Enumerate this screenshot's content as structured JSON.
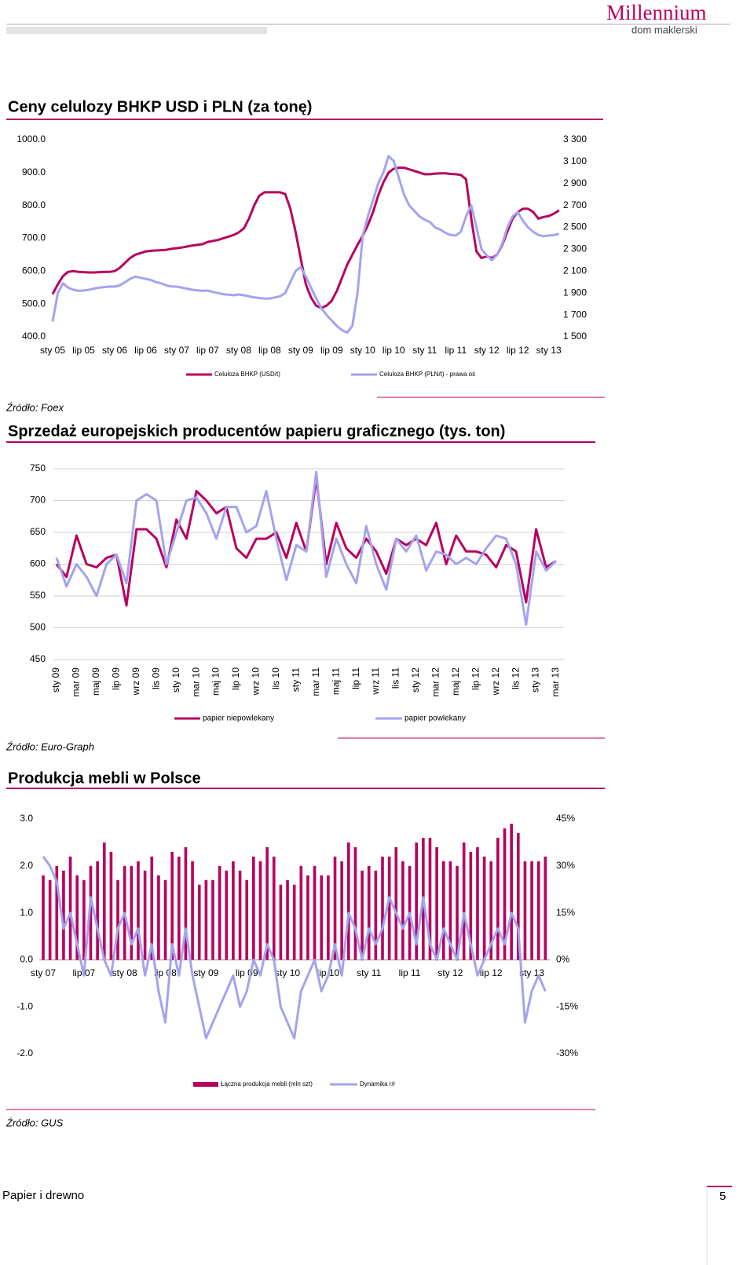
{
  "header": {
    "logo": "Millennium",
    "logo_sub": "dom maklerski"
  },
  "chart_data": [
    {
      "type": "line",
      "title": "Ceny celulozy BHKP USD i PLN (za tonę)",
      "source": "Źródło: Foex",
      "categories": [
        "sty 05",
        null,
        null,
        null,
        null,
        null,
        "lip 05",
        null,
        null,
        null,
        null,
        null,
        "sty 06",
        null,
        null,
        null,
        null,
        null,
        "lip 06",
        null,
        null,
        null,
        null,
        null,
        "sty 07",
        null,
        null,
        null,
        null,
        null,
        "lip 07",
        null,
        null,
        null,
        null,
        null,
        "sty 08",
        null,
        null,
        null,
        null,
        null,
        "lip 08",
        null,
        null,
        null,
        null,
        null,
        "sty 09",
        null,
        null,
        null,
        null,
        null,
        "lip 09",
        null,
        null,
        null,
        null,
        null,
        "sty 10",
        null,
        null,
        null,
        null,
        null,
        "lip 10",
        null,
        null,
        null,
        null,
        null,
        "sty 11",
        null,
        null,
        null,
        null,
        null,
        "lip 11",
        null,
        null,
        null,
        null,
        null,
        "sty 12",
        null,
        null,
        null,
        null,
        null,
        "lip 12",
        null,
        null,
        null,
        null,
        null,
        "sty 13",
        null,
        null
      ],
      "series": [
        {
          "name": "Celuloza BHKP (USD/t)",
          "color": "#b8005f",
          "values": [
            530,
            560,
            585,
            598,
            600,
            598,
            597,
            596,
            596,
            597,
            598,
            598,
            600,
            610,
            625,
            640,
            650,
            655,
            660,
            662,
            663,
            664,
            665,
            668,
            670,
            672,
            675,
            678,
            680,
            682,
            689,
            692,
            695,
            700,
            705,
            710,
            718,
            730,
            760,
            800,
            830,
            840,
            840,
            840,
            840,
            835,
            790,
            720,
            640,
            560,
            520,
            495,
            488,
            495,
            510,
            540,
            580,
            620,
            650,
            680,
            708,
            740,
            780,
            830,
            870,
            900,
            912,
            915,
            915,
            910,
            905,
            900,
            895,
            895,
            897,
            898,
            898,
            896,
            895,
            893,
            880,
            760,
            660,
            640,
            645,
            640,
            650,
            680,
            720,
            760,
            780,
            790,
            790,
            780,
            760,
            765,
            768,
            775,
            785
          ]
        },
        {
          "name": "Celuloza BHKP (PLN/t) - prawa oś",
          "color": "#a3a3f0",
          "axis": "y2",
          "values": [
            1640,
            1900,
            1990,
            1950,
            1930,
            1920,
            1923,
            1930,
            1940,
            1950,
            1955,
            1960,
            1959,
            1970,
            2000,
            2030,
            2050,
            2040,
            2030,
            2020,
            2000,
            1990,
            1970,
            1960,
            1959,
            1950,
            1940,
            1930,
            1925,
            1920,
            1923,
            1910,
            1900,
            1890,
            1885,
            1880,
            1887,
            1880,
            1870,
            1860,
            1855,
            1850,
            1850,
            1860,
            1870,
            1900,
            2000,
            2100,
            2138,
            2050,
            1950,
            1850,
            1760,
            1700,
            1650,
            1600,
            1560,
            1540,
            1600,
            1900,
            2425,
            2600,
            2750,
            2900,
            3000,
            3150,
            3106,
            2950,
            2800,
            2700,
            2650,
            2600,
            2569,
            2550,
            2500,
            2480,
            2450,
            2430,
            2425,
            2460,
            2600,
            2700,
            2500,
            2300,
            2246,
            2200,
            2250,
            2350,
            2500,
            2600,
            2640,
            2560,
            2500,
            2460,
            2430,
            2420,
            2425,
            2430,
            2440
          ]
        }
      ],
      "ylim": [
        400,
        1000
      ],
      "yticks": [
        {
          "value": 1000,
          "label": "1000.0"
        },
        {
          "value": 900,
          "label": "900.0"
        },
        {
          "value": 800,
          "label": "800.0"
        },
        {
          "value": 700,
          "label": "700.0"
        },
        {
          "value": 600,
          "label": "600.0"
        },
        {
          "value": 500,
          "label": "500.0"
        },
        {
          "value": 400,
          "label": "400.0"
        }
      ],
      "y2lim": [
        1500,
        3300
      ],
      "y2ticks": [
        {
          "value": 3300,
          "label": "3 300"
        },
        {
          "value": 3100,
          "label": "3 100"
        },
        {
          "value": 2900,
          "label": "2 900"
        },
        {
          "value": 2700,
          "label": "2 700"
        },
        {
          "value": 2500,
          "label": "2 500"
        },
        {
          "value": 2300,
          "label": "2 300"
        },
        {
          "value": 2100,
          "label": "2 100"
        },
        {
          "value": 1900,
          "label": "1 900"
        },
        {
          "value": 1700,
          "label": "1 700"
        },
        {
          "value": 1500,
          "label": "1 500"
        }
      ],
      "grid": false
    },
    {
      "type": "line",
      "title": "Sprzedaż europejskich producentów papieru graficznego (tys. ton)",
      "source": "Źródło: Euro-Graph",
      "categories": [
        "sty 09",
        null,
        "mar 09",
        null,
        "maj 09",
        null,
        "lip 09",
        null,
        "wrz 09",
        null,
        "lis 09",
        null,
        "sty 10",
        null,
        "mar 10",
        null,
        "maj 10",
        null,
        "lip 10",
        null,
        "wrz 10",
        null,
        "lis 10",
        null,
        "sty 11",
        null,
        "mar 11",
        null,
        "maj 11",
        null,
        "lip 11",
        null,
        "wrz 11",
        null,
        "lis 11",
        null,
        "sty 12",
        null,
        "mar 12",
        null,
        "maj 12",
        null,
        "lip 12",
        null,
        "wrz 12",
        null,
        "lis 12",
        null,
        "sty 13",
        null,
        "mar 13"
      ],
      "series": [
        {
          "name": "papier niepowlekany",
          "color": "#b8005f",
          "values": [
            600,
            580,
            645,
            600,
            595,
            610,
            615,
            535,
            655,
            655,
            640,
            595,
            670,
            640,
            715,
            700,
            680,
            690,
            625,
            610,
            640,
            640,
            650,
            610,
            665,
            620,
            735,
            600,
            665,
            625,
            610,
            640,
            620,
            585,
            640,
            630,
            640,
            630,
            665,
            600,
            645,
            620,
            620,
            615,
            595,
            630,
            620,
            540,
            655,
            595,
            605
          ]
        },
        {
          "name": "papier powlekany",
          "color": "#a3a3f0",
          "values": [
            610,
            565,
            600,
            580,
            550,
            600,
            615,
            570,
            700,
            710,
            700,
            600,
            650,
            700,
            705,
            680,
            640,
            690,
            690,
            650,
            660,
            715,
            640,
            575,
            630,
            620,
            745,
            580,
            640,
            600,
            570,
            660,
            600,
            560,
            640,
            620,
            645,
            590,
            620,
            615,
            600,
            610,
            600,
            625,
            645,
            640,
            600,
            505,
            620,
            590,
            605
          ]
        }
      ],
      "ylim": [
        450,
        750
      ],
      "yticks": [
        750,
        700,
        650,
        600,
        550,
        500,
        450
      ],
      "grid": true
    },
    {
      "type": "combo",
      "title": "Produkcja mebli w Polsce",
      "source": "Źródło: GUS",
      "categories": [
        "sty 07",
        null,
        null,
        null,
        null,
        null,
        "lip 07",
        null,
        null,
        null,
        null,
        null,
        "sty 08",
        null,
        null,
        null,
        null,
        null,
        "lip 08",
        null,
        null,
        null,
        null,
        null,
        "sty 09",
        null,
        null,
        null,
        null,
        null,
        "lip 09",
        null,
        null,
        null,
        null,
        null,
        "sty 10",
        null,
        null,
        null,
        null,
        null,
        "lip 10",
        null,
        null,
        null,
        null,
        null,
        "sty 11",
        null,
        null,
        null,
        null,
        null,
        "lip 11",
        null,
        null,
        null,
        null,
        null,
        "sty 12",
        null,
        null,
        null,
        null,
        null,
        "lip 12",
        null,
        null,
        null,
        null,
        null,
        "sty 13",
        null,
        null
      ],
      "series": [
        {
          "name": "Łączna produkcja mebli (mln szt)",
          "type": "bar",
          "color": "#b8005f",
          "values": [
            1.8,
            1.7,
            2.0,
            1.9,
            2.2,
            1.8,
            1.7,
            2.0,
            2.1,
            2.5,
            2.3,
            1.7,
            2.0,
            2.0,
            2.1,
            1.9,
            2.2,
            1.8,
            1.7,
            2.3,
            2.2,
            2.4,
            2.1,
            1.6,
            1.7,
            1.7,
            2.0,
            1.9,
            2.1,
            1.9,
            1.7,
            2.2,
            2.1,
            2.4,
            2.2,
            1.6,
            1.7,
            1.6,
            2.0,
            1.8,
            2.0,
            1.8,
            1.8,
            2.2,
            2.1,
            2.5,
            2.4,
            1.9,
            2.0,
            1.9,
            2.2,
            2.2,
            2.4,
            2.1,
            2.0,
            2.5,
            2.6,
            2.6,
            2.4,
            2.1,
            2.1,
            2.0,
            2.5,
            2.3,
            2.4,
            2.2,
            2.1,
            2.6,
            2.8,
            2.9,
            2.7,
            2.1,
            2.1,
            2.1,
            2.2
          ]
        },
        {
          "name": "Dynamika r/r",
          "type": "line",
          "axis": "y2",
          "color": "#a3a3f0",
          "values": [
            33,
            30,
            25,
            10,
            15,
            5,
            -5,
            20,
            10,
            0,
            -5,
            10,
            15,
            5,
            10,
            -5,
            5,
            -10,
            -20,
            5,
            -5,
            10,
            -5,
            -15,
            -25,
            -20,
            -15,
            -10,
            -5,
            -15,
            -10,
            0,
            -5,
            5,
            0,
            -15,
            -20,
            -25,
            -10,
            -5,
            0,
            -10,
            -5,
            5,
            -5,
            15,
            10,
            0,
            10,
            5,
            10,
            20,
            15,
            10,
            15,
            5,
            20,
            5,
            0,
            10,
            5,
            0,
            15,
            5,
            -5,
            0,
            5,
            10,
            5,
            15,
            10,
            -20,
            -10,
            -5,
            -10
          ]
        }
      ],
      "ylim": [
        -2,
        3
      ],
      "yticks": [
        {
          "value": 3,
          "label": "3.0"
        },
        {
          "value": 2,
          "label": "2.0"
        },
        {
          "value": 1,
          "label": "1.0"
        },
        {
          "value": 0,
          "label": "0.0"
        },
        {
          "value": -1,
          "label": "-1.0"
        },
        {
          "value": -2,
          "label": "-2.0"
        }
      ],
      "y2lim": [
        -30,
        45
      ],
      "y2ticks": [
        {
          "value": 45,
          "label": "45%"
        },
        {
          "value": 30,
          "label": "30%"
        },
        {
          "value": 15,
          "label": "15%"
        },
        {
          "value": 0,
          "label": "0%"
        },
        {
          "value": -15,
          "label": "-15%"
        },
        {
          "value": -30,
          "label": "-30%"
        }
      ],
      "grid": false
    }
  ],
  "footer": {
    "section": "Papier i drewno",
    "page": 5
  }
}
